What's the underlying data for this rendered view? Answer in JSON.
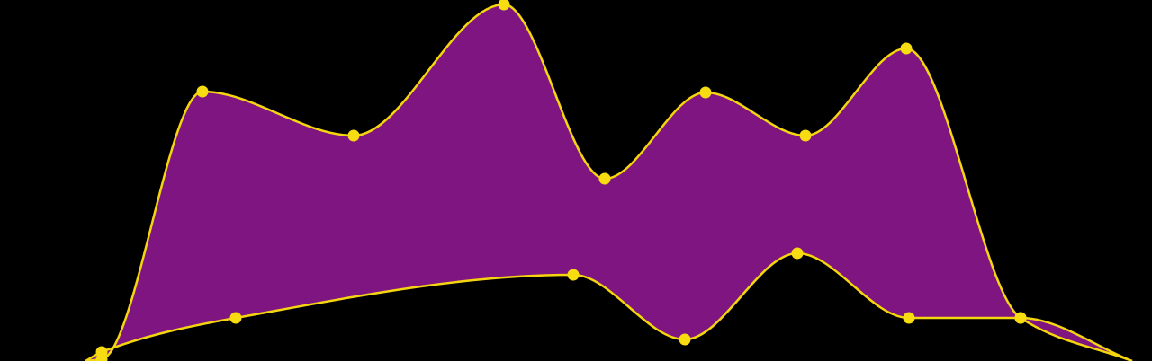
{
  "chart_data": {
    "type": "area",
    "title": "",
    "xlabel": "",
    "ylabel": "",
    "grid": false,
    "legend": "none",
    "colors": {
      "background": "#000000",
      "fill": "#7f1580",
      "line": "#f5d50f",
      "marker": "#f7dc12"
    },
    "series": [
      {
        "role": "upper",
        "x": [
          113,
          225,
          393,
          560,
          672,
          784,
          895,
          1007,
          1134
        ],
        "y": [
          2,
          300,
          251,
          397,
          203,
          299,
          251,
          348,
          48
        ]
      },
      {
        "role": "lower",
        "x": [
          113,
          262,
          637,
          761,
          886,
          1010,
          1134
        ],
        "y": [
          10,
          48,
          96,
          24,
          120,
          48,
          48
        ]
      }
    ]
  }
}
